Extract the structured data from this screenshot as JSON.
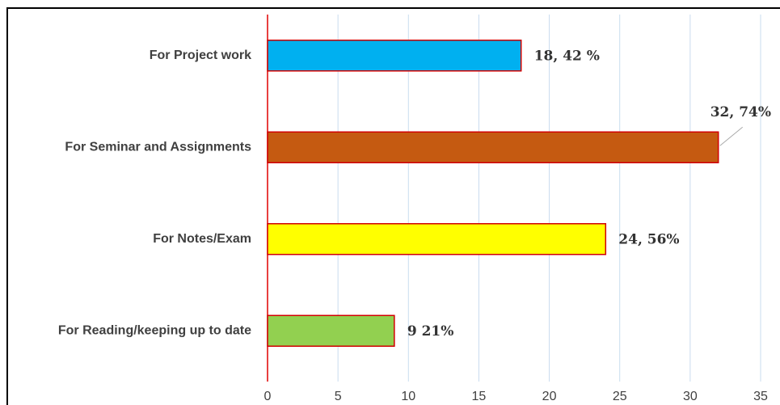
{
  "chart_data": {
    "type": "bar",
    "orientation": "horizontal",
    "categories": [
      "For Project work",
      "For Seminar and Assignments",
      "For Notes/Exam",
      "For Reading/keeping up to date"
    ],
    "values": [
      18,
      32,
      24,
      9
    ],
    "value_labels": [
      "18, 42 %",
      "32, 74%",
      "24, 56%",
      "9 21%"
    ],
    "colors": [
      "#00b0f0",
      "#c55a11",
      "#ffff00",
      "#92d050"
    ],
    "xlim": [
      0,
      35
    ],
    "xticks": [
      0,
      5,
      10,
      15,
      20,
      25,
      30,
      35
    ],
    "grid": true
  }
}
